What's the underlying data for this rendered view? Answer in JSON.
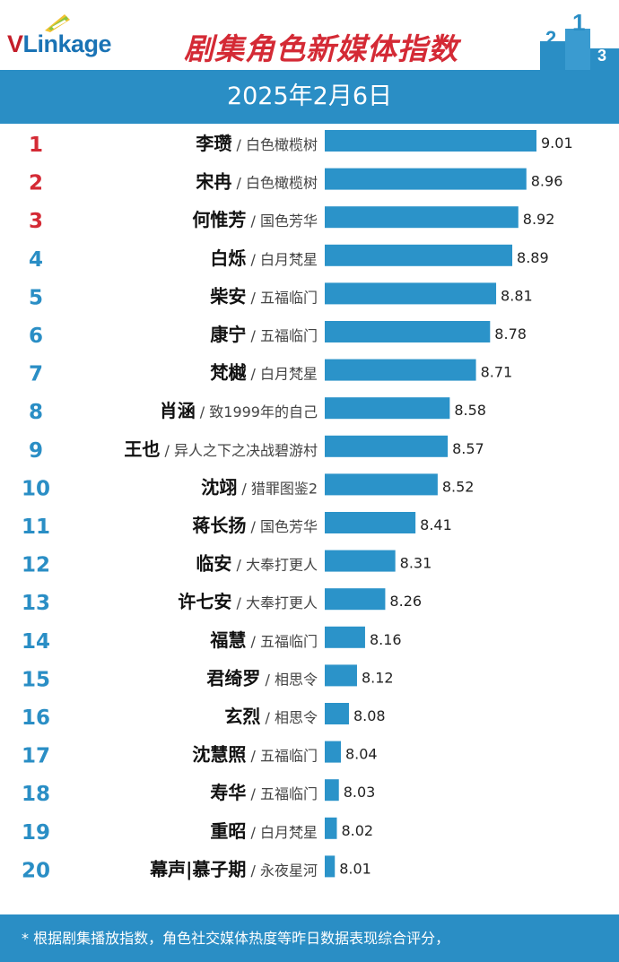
{
  "brand": {
    "logo_letter": "V",
    "logo_rest": "Linkage"
  },
  "title": "剧集角色新媒体指数",
  "date": "2025年2月6日",
  "footer_note": "* 根据剧集播放指数，角色社交媒体热度等昨日数据表现综合评分，",
  "colors": {
    "bar": "#2b93c9",
    "header_band": "#2a8ec5",
    "rank_top3": "#d42a35",
    "rank_other": "#2a8ec5",
    "title": "#d42a35"
  },
  "chart_data": {
    "type": "bar",
    "orientation": "horizontal",
    "ranks": [
      "1",
      "2",
      "3",
      "4",
      "5",
      "6",
      "7",
      "8",
      "9",
      "10",
      "11",
      "12",
      "13",
      "14",
      "15",
      "16",
      "17",
      "18",
      "19",
      "20"
    ],
    "characters": [
      "李瓒",
      "宋冉",
      "何惟芳",
      "白烁",
      "柴安",
      "康宁",
      "梵樾",
      "肖涵",
      "王也",
      "沈翊",
      "蒋长扬",
      "临安",
      "许七安",
      "福慧",
      "君绮罗",
      "玄烈",
      "沈慧照",
      "寿华",
      "重昭",
      "幕声|慕子期"
    ],
    "dramas": [
      "白色橄榄树",
      "白色橄榄树",
      "国色芳华",
      "白月梵星",
      "五福临门",
      "五福临门",
      "白月梵星",
      "致1999年的自己",
      "异人之下之决战碧游村",
      "猎罪图鉴2",
      "国色芳华",
      "大奉打更人",
      "大奉打更人",
      "五福临门",
      "相思令",
      "相思令",
      "五福临门",
      "五福临门",
      "白月梵星",
      "永夜星河"
    ],
    "values": [
      9.01,
      8.96,
      8.92,
      8.89,
      8.81,
      8.78,
      8.71,
      8.58,
      8.57,
      8.52,
      8.41,
      8.31,
      8.26,
      8.16,
      8.12,
      8.08,
      8.04,
      8.03,
      8.02,
      8.01
    ],
    "value_labels": [
      "9.01",
      "8.96",
      "8.92",
      "8.89",
      "8.81",
      "8.78",
      "8.71",
      "8.58",
      "8.57",
      "8.52",
      "8.41",
      "8.31",
      "8.26",
      "8.16",
      "8.12",
      "8.08",
      "8.04",
      "8.03",
      "8.02",
      "8.01"
    ]
  }
}
